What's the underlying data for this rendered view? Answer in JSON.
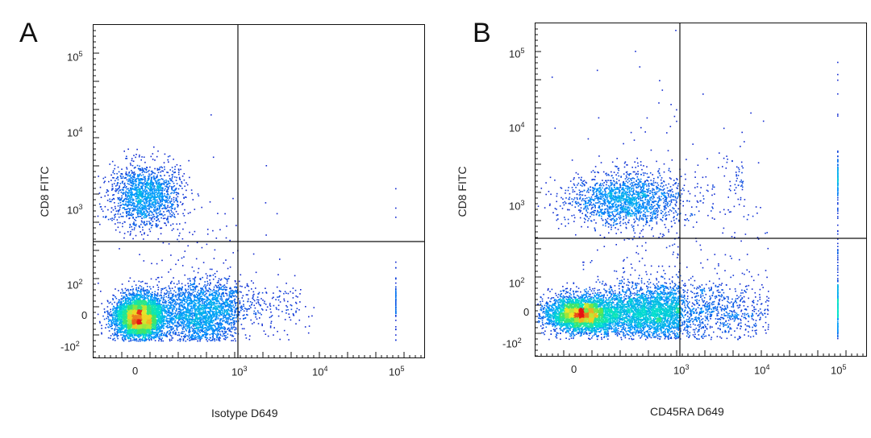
{
  "chart_data": [
    {
      "type": "scatter",
      "panel_label": "A",
      "xlabel": "Isotype D649",
      "ylabel": "CD8 FITC",
      "x_ticks": [
        {
          "base": "0",
          "exp": ""
        },
        {
          "base": "10",
          "exp": "3"
        },
        {
          "base": "10",
          "exp": "4"
        },
        {
          "base": "10",
          "exp": "5"
        }
      ],
      "y_ticks": [
        {
          "base": "10",
          "exp": "5"
        },
        {
          "base": "10",
          "exp": "4"
        },
        {
          "base": "10",
          "exp": "3"
        },
        {
          "base": "10",
          "exp": "2"
        },
        {
          "base": "0",
          "exp": ""
        },
        {
          "base": "-10",
          "exp": "2"
        }
      ],
      "quadrant_gate": {
        "x": 1000,
        "y": 400
      },
      "populations": [
        {
          "cx": 0,
          "cy": 0,
          "sx": 0.18,
          "sy": 0.1,
          "n": 4200,
          "peak": "red"
        },
        {
          "cx": 1.3,
          "cy": 0.15,
          "sx": 0.55,
          "sy": 0.15,
          "n": 2200,
          "peak": "cyan"
        },
        {
          "cx": 0.2,
          "cy": 3.2,
          "sx": 0.25,
          "sy": 0.15,
          "n": 1600,
          "peak": "cyan"
        },
        {
          "cx": 2.6,
          "cy": 1.2,
          "sx": 0.9,
          "sy": 0.6,
          "n": 500,
          "peak": "blue"
        }
      ],
      "grid": false
    },
    {
      "type": "scatter",
      "panel_label": "B",
      "xlabel": "CD45RA D649",
      "ylabel": "CD8 FITC",
      "x_ticks": [
        {
          "base": "0",
          "exp": ""
        },
        {
          "base": "10",
          "exp": "3"
        },
        {
          "base": "10",
          "exp": "4"
        },
        {
          "base": "10",
          "exp": "5"
        }
      ],
      "y_ticks": [
        {
          "base": "10",
          "exp": "5"
        },
        {
          "base": "10",
          "exp": "4"
        },
        {
          "base": "10",
          "exp": "3"
        },
        {
          "base": "10",
          "exp": "2"
        },
        {
          "base": "0",
          "exp": ""
        },
        {
          "base": "-10",
          "exp": "2"
        }
      ],
      "quadrant_gate": {
        "x": 1000,
        "y": 400
      },
      "populations": [
        {
          "cx": 0.1,
          "cy": 0.0,
          "sx": 0.25,
          "sy": 0.08,
          "n": 3500,
          "peak": "red"
        },
        {
          "cx": 1.8,
          "cy": 0.05,
          "sx": 0.8,
          "sy": 0.12,
          "n": 3500,
          "peak": "green"
        },
        {
          "cx": 0.8,
          "cy": 3.1,
          "sx": 0.7,
          "sy": 0.12,
          "n": 1700,
          "peak": "cyan"
        },
        {
          "cx": 3.9,
          "cy": 3.35,
          "sx": 0.12,
          "sy": 0.1,
          "n": 150,
          "peak": "cyan"
        },
        {
          "cx": 2.4,
          "cy": 1.8,
          "sx": 1.2,
          "sy": 0.9,
          "n": 700,
          "peak": "blue"
        }
      ],
      "grid": false
    }
  ]
}
